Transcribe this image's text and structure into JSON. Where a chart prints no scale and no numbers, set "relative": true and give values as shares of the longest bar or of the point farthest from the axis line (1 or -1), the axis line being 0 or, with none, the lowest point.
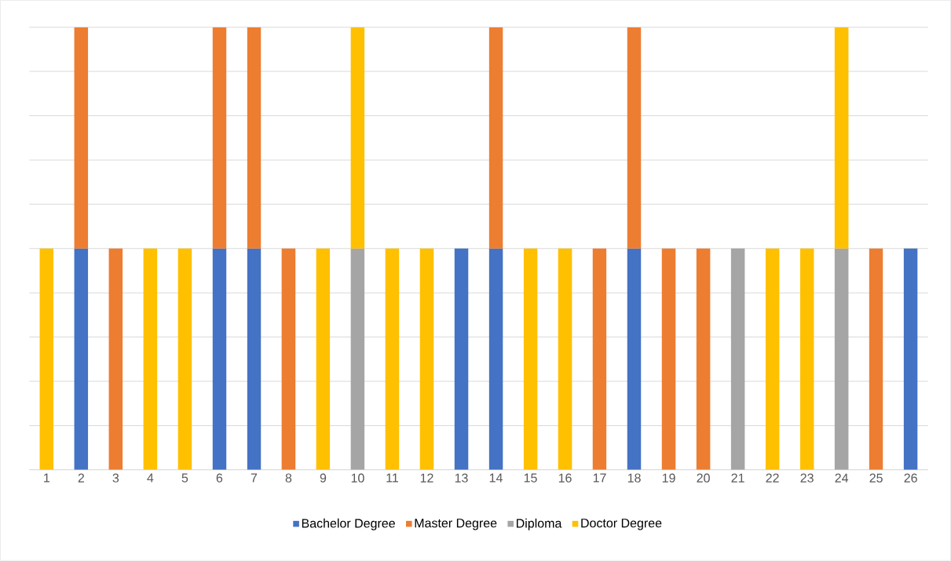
{
  "chart_data": {
    "type": "bar",
    "stacked": true,
    "relative": true,
    "grid": "y",
    "legend": "bottom",
    "categories": [
      "1",
      "2",
      "3",
      "4",
      "5",
      "6",
      "7",
      "8",
      "9",
      "10",
      "11",
      "12",
      "13",
      "14",
      "15",
      "16",
      "17",
      "18",
      "19",
      "20",
      "21",
      "22",
      "23",
      "24",
      "25",
      "26"
    ],
    "series": [
      {
        "name": "Bachelor Degree",
        "color": "#4472c4",
        "values": [
          null,
          0.5,
          null,
          null,
          null,
          0.5,
          0.5,
          null,
          null,
          null,
          null,
          null,
          0.5,
          0.5,
          null,
          null,
          null,
          0.5,
          null,
          null,
          null,
          null,
          null,
          null,
          null,
          0.5
        ]
      },
      {
        "name": "Master Degree",
        "color": "#ed7d31",
        "values": [
          null,
          0.5,
          0.5,
          null,
          null,
          0.5,
          0.5,
          0.5,
          null,
          null,
          null,
          null,
          null,
          0.5,
          null,
          null,
          0.5,
          0.5,
          0.5,
          0.5,
          null,
          null,
          null,
          null,
          0.5,
          null
        ]
      },
      {
        "name": "Diploma",
        "color": "#a5a5a5",
        "values": [
          null,
          null,
          null,
          null,
          null,
          null,
          null,
          null,
          null,
          0.5,
          null,
          null,
          null,
          null,
          null,
          null,
          null,
          null,
          null,
          null,
          0.5,
          null,
          null,
          0.5,
          null,
          null
        ]
      },
      {
        "name": "Doctor Degree",
        "color": "#ffc000",
        "values": [
          0.5,
          null,
          null,
          0.5,
          0.5,
          null,
          null,
          null,
          0.5,
          0.5,
          0.5,
          0.5,
          null,
          null,
          0.5,
          0.5,
          null,
          null,
          null,
          null,
          null,
          0.5,
          0.5,
          0.5,
          null,
          null
        ]
      }
    ]
  }
}
